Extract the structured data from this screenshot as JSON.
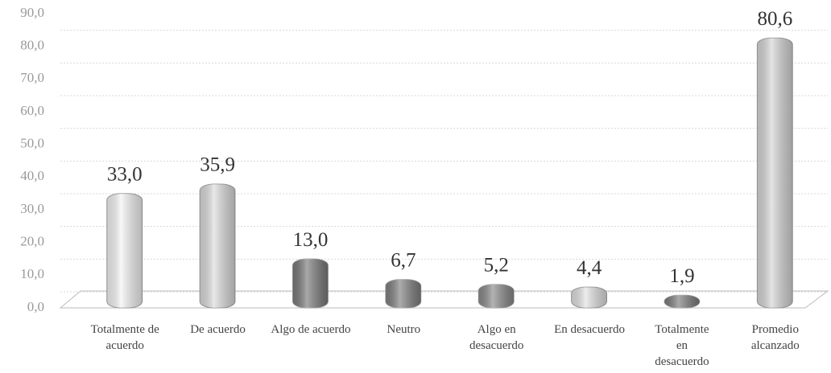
{
  "chart_data": {
    "type": "bar",
    "categories": [
      "Totalmente de acuerdo",
      "De acuerdo",
      "Algo de acuerdo",
      "Neutro",
      "Algo en desacuerdo",
      "En desacuerdo",
      "Totalmente en desacuerdo",
      "Promedio alcanzado"
    ],
    "values": [
      33.0,
      35.9,
      13.0,
      6.7,
      5.2,
      4.4,
      1.9,
      80.6
    ],
    "value_labels": [
      "33,0",
      "35,9",
      "13,0",
      "6,7",
      "5,2",
      "4,4",
      "1,9",
      "80,6"
    ],
    "colors": [
      "#f4f4f4",
      "#dcdcdc",
      "#7a7a7a",
      "#808080",
      "#8a8a8a",
      "#e2e2e2",
      "#7c7c7c",
      "#d6d6d6"
    ],
    "ylim": [
      0,
      90
    ],
    "yticks": [
      {
        "value": 0,
        "label": "0,0"
      },
      {
        "value": 10,
        "label": "10,0"
      },
      {
        "value": 20,
        "label": "20,0"
      },
      {
        "value": 30,
        "label": "30,0"
      },
      {
        "value": 40,
        "label": "40,0"
      },
      {
        "value": 50,
        "label": "50,0"
      },
      {
        "value": 60,
        "label": "60,0"
      },
      {
        "value": 70,
        "label": "70,0"
      },
      {
        "value": 80,
        "label": "80,0"
      },
      {
        "value": 90,
        "label": "90,0"
      }
    ],
    "grid": true
  }
}
